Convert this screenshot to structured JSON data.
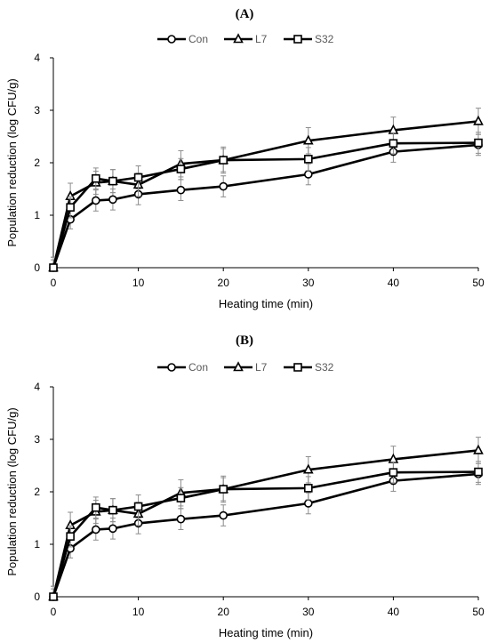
{
  "chart_data": [
    {
      "type": "line",
      "panel_label": "(A)",
      "xlabel": "Heating time (min)",
      "ylabel": "Population reduction (log CFU/g)",
      "xlim": [
        0,
        50
      ],
      "ylim": [
        0,
        4
      ],
      "x_ticks": [
        0,
        10,
        20,
        30,
        40,
        50
      ],
      "y_ticks": [
        0,
        1,
        2,
        3,
        4
      ],
      "grid": false,
      "legend_position": "top-center",
      "x": [
        0,
        2,
        5,
        7,
        10,
        15,
        20,
        30,
        40,
        50
      ],
      "series": [
        {
          "name": "Con",
          "marker": "circle",
          "values": [
            0,
            0.92,
            1.28,
            1.3,
            1.4,
            1.48,
            1.55,
            1.78,
            2.21,
            2.34
          ],
          "errors": [
            0.2,
            0.18,
            0.2,
            0.2,
            0.2,
            0.2,
            0.2,
            0.2,
            0.2,
            0.2
          ]
        },
        {
          "name": "L7",
          "marker": "triangle",
          "values": [
            0,
            1.36,
            1.62,
            1.65,
            1.58,
            1.98,
            2.05,
            2.42,
            2.62,
            2.79
          ],
          "errors": [
            0.15,
            0.25,
            0.22,
            0.22,
            0.22,
            0.25,
            0.25,
            0.25,
            0.25,
            0.25
          ]
        },
        {
          "name": "S32",
          "marker": "square",
          "values": [
            0,
            1.15,
            1.7,
            1.65,
            1.72,
            1.88,
            2.05,
            2.07,
            2.37,
            2.38
          ],
          "errors": [
            0.2,
            0.2,
            0.2,
            0.22,
            0.22,
            0.2,
            0.22,
            0.22,
            0.2,
            0.2
          ]
        }
      ]
    },
    {
      "type": "line",
      "panel_label": "(B)",
      "xlabel": "Heating time (min)",
      "ylabel": "Population reduction (log CFU/g)",
      "xlim": [
        0,
        50
      ],
      "ylim": [
        0,
        4
      ],
      "x_ticks": [
        0,
        10,
        20,
        30,
        40,
        50
      ],
      "y_ticks": [
        0,
        1,
        2,
        3,
        4
      ],
      "grid": false,
      "legend_position": "top-center",
      "x": [
        0,
        2,
        5,
        7,
        10,
        15,
        20,
        30,
        40,
        50
      ],
      "series": [
        {
          "name": "Con",
          "marker": "circle",
          "values": [
            0,
            0.92,
            1.28,
            1.3,
            1.4,
            1.48,
            1.55,
            1.78,
            2.21,
            2.34
          ],
          "errors": [
            0.2,
            0.18,
            0.2,
            0.2,
            0.2,
            0.2,
            0.2,
            0.2,
            0.2,
            0.2
          ]
        },
        {
          "name": "L7",
          "marker": "triangle",
          "values": [
            0,
            1.36,
            1.62,
            1.65,
            1.58,
            1.98,
            2.05,
            2.42,
            2.62,
            2.79
          ],
          "errors": [
            0.15,
            0.25,
            0.22,
            0.22,
            0.22,
            0.25,
            0.25,
            0.25,
            0.25,
            0.25
          ]
        },
        {
          "name": "S32",
          "marker": "square",
          "values": [
            0,
            1.15,
            1.7,
            1.65,
            1.72,
            1.88,
            2.05,
            2.07,
            2.37,
            2.38
          ],
          "errors": [
            0.2,
            0.2,
            0.2,
            0.22,
            0.22,
            0.2,
            0.22,
            0.22,
            0.2,
            0.2
          ]
        }
      ]
    }
  ]
}
